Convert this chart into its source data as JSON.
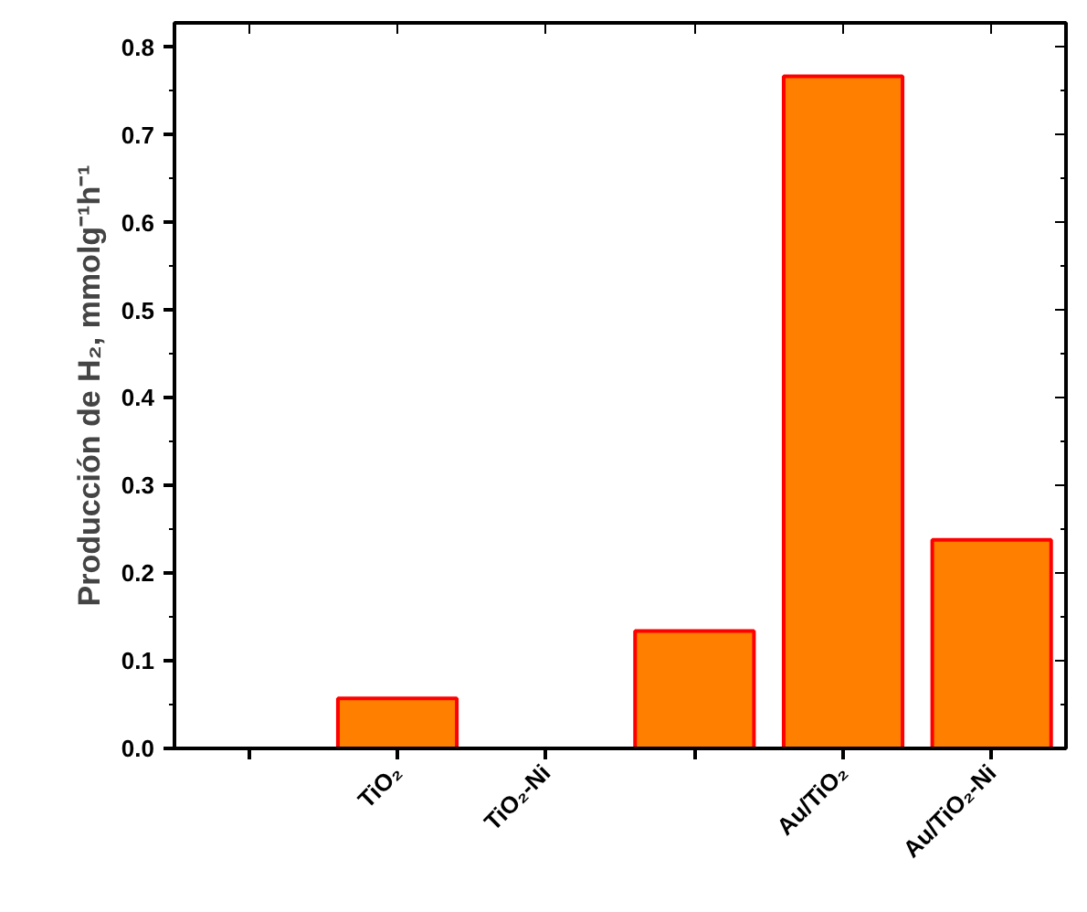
{
  "chart_data": {
    "type": "bar",
    "ylabel": "Producción de H₂, mmolg⁻¹h⁻¹",
    "categories": [
      null,
      "TiO₂",
      "TiO₂-Ni",
      null,
      "Au/TiO₂",
      "Au/TiO₂-Ni"
    ],
    "values": [
      0,
      0.057,
      0,
      0.134,
      0.767,
      0.238
    ],
    "color": "#ff8000",
    "ylim": [
      0,
      0.828
    ],
    "yticks": [
      {
        "value": 0,
        "label": "0.0"
      },
      {
        "value": 0.1,
        "label": "0.1"
      },
      {
        "value": 0.2,
        "label": "0.2"
      },
      {
        "value": 0.3,
        "label": "0.3"
      },
      {
        "value": 0.4,
        "label": "0.4"
      },
      {
        "value": 0.5,
        "label": "0.5"
      },
      {
        "value": 0.6,
        "label": "0.6"
      },
      {
        "value": 0.7,
        "label": "0.7"
      },
      {
        "value": 0.8,
        "label": "0.8"
      }
    ],
    "grid": false
  }
}
